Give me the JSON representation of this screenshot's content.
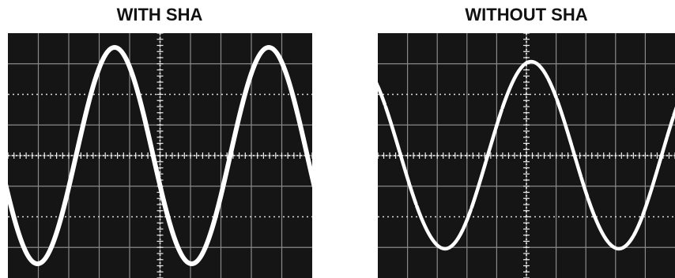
{
  "panels": [
    {
      "title": "WITH SHA"
    },
    {
      "title": "WITHOUT SHA"
    }
  ]
}
